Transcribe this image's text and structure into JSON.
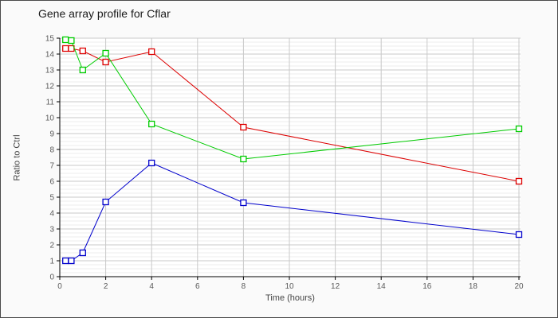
{
  "window": {
    "title": "Gene array profile for Cflar"
  },
  "chart_data": {
    "type": "line",
    "title": "Gene array profile for Cflar",
    "xlabel": "Time (hours)",
    "ylabel": "Ratio to Ctrl",
    "xlim": [
      0,
      20
    ],
    "ylim": [
      0,
      15
    ],
    "x_ticks": [
      0,
      2,
      4,
      6,
      8,
      10,
      12,
      14,
      16,
      18,
      20
    ],
    "y_ticks": [
      0,
      1,
      2,
      3,
      4,
      5,
      6,
      7,
      8,
      9,
      10,
      11,
      12,
      13,
      14,
      15
    ],
    "grid": true,
    "legend": "none",
    "marker": "open-square",
    "x": [
      0.25,
      0.5,
      1,
      2,
      4,
      8,
      20
    ],
    "series": [
      {
        "name": "series-red",
        "color": "#dd0000",
        "values": [
          14.35,
          14.35,
          14.2,
          13.5,
          14.15,
          9.4,
          6.0
        ]
      },
      {
        "name": "series-green",
        "color": "#00cc00",
        "values": [
          14.9,
          14.85,
          13.0,
          14.05,
          9.6,
          7.4,
          9.3
        ]
      },
      {
        "name": "series-blue",
        "color": "#0000cc",
        "values": [
          1.0,
          1.0,
          1.5,
          4.7,
          7.15,
          4.65,
          2.65
        ]
      }
    ]
  }
}
